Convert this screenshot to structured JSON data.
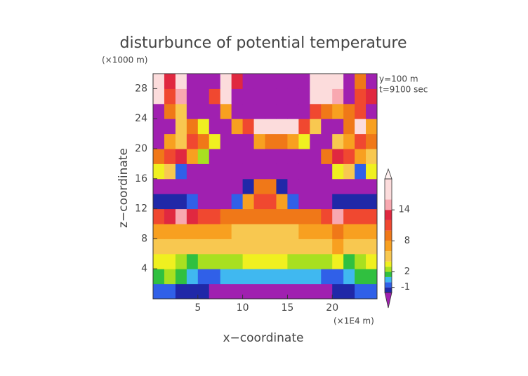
{
  "chart_data": {
    "type": "contour",
    "title": "disturbunce of potential temperature",
    "y_unit_label": "(×1000 m)",
    "x_unit_label": "(×1E4 m)",
    "annotations": [
      "y=100 m",
      "t=9100 sec"
    ],
    "xlabel": "x−coordinate",
    "ylabel": "z−coordinate",
    "xlim": [
      0,
      25
    ],
    "ylim": [
      0,
      30
    ],
    "xticks": [
      5,
      10,
      15,
      20
    ],
    "yticks": [
      4,
      8,
      12,
      16,
      20,
      24,
      28
    ],
    "z": [
      [
        -1,
        -1,
        -2,
        -2,
        -2,
        -5,
        -5,
        -5,
        -5,
        -5,
        -5,
        -5,
        -5,
        -5,
        -5,
        -5,
        -2,
        -2,
        -1,
        -1
      ],
      [
        1,
        2,
        1,
        0,
        -1,
        -1,
        0,
        0,
        0,
        0,
        0,
        0,
        0,
        0,
        0,
        -1,
        -1,
        0,
        1,
        1
      ],
      [
        3,
        3,
        2,
        1,
        2,
        2,
        2,
        2,
        3,
        3,
        3,
        3,
        2,
        2,
        2,
        2,
        3,
        1,
        2,
        3
      ],
      [
        5,
        5,
        4,
        5,
        5,
        5,
        5,
        5,
        5,
        5,
        5,
        5,
        5,
        5,
        5,
        5,
        7,
        5,
        5,
        5
      ],
      [
        7,
        7,
        7,
        7,
        7,
        7,
        7,
        5,
        5,
        5,
        5,
        5,
        5,
        7,
        7,
        7,
        9,
        7,
        7,
        7
      ],
      [
        11,
        13,
        15,
        13,
        11,
        11,
        9,
        9,
        9,
        9,
        9,
        9,
        9,
        9,
        9,
        11,
        15,
        11,
        11,
        11
      ],
      [
        -2,
        -2,
        -2,
        -1,
        -5,
        -5,
        -5,
        -1,
        7,
        11,
        11,
        7,
        -1,
        -5,
        -5,
        -5,
        -2,
        -2,
        -2,
        -2
      ],
      [
        -5,
        -5,
        -5,
        -5,
        -5,
        -5,
        -5,
        -5,
        -2,
        9,
        9,
        -2,
        -5,
        -5,
        -5,
        -5,
        -5,
        -5,
        -5,
        -5
      ],
      [
        3,
        5,
        -1,
        -5,
        -5,
        -5,
        -5,
        -5,
        -5,
        -5,
        -5,
        -5,
        -5,
        -5,
        -5,
        -5,
        3,
        5,
        -1,
        3
      ],
      [
        9,
        11,
        13,
        7,
        2,
        -5,
        -5,
        -5,
        -5,
        -5,
        -5,
        -5,
        -5,
        -5,
        -5,
        9,
        13,
        11,
        7,
        5
      ],
      [
        -5,
        7,
        5,
        11,
        9,
        3,
        -5,
        -5,
        -5,
        7,
        9,
        9,
        7,
        3,
        -5,
        -5,
        5,
        7,
        11,
        9
      ],
      [
        -5,
        -5,
        5,
        9,
        3,
        -5,
        -5,
        7,
        11,
        17,
        17,
        17,
        17,
        11,
        5,
        -5,
        -5,
        9,
        17,
        7
      ],
      [
        -5,
        9,
        5,
        -5,
        -5,
        -5,
        7,
        -5,
        -5,
        -5,
        -5,
        -5,
        -5,
        -5,
        11,
        9,
        7,
        9,
        11,
        -5
      ],
      [
        17,
        11,
        15,
        -5,
        -5,
        11,
        17,
        -5,
        -5,
        -5,
        -5,
        -5,
        -5,
        -5,
        17,
        17,
        15,
        -5,
        11,
        13
      ],
      [
        17,
        13,
        17,
        -5,
        -5,
        -5,
        17,
        13,
        -5,
        -5,
        -5,
        -5,
        -5,
        -5,
        17,
        17,
        17,
        -5,
        9,
        -5
      ]
    ],
    "colorbar": {
      "levels": [
        -2,
        -1,
        0,
        1,
        2,
        3,
        4,
        6,
        8,
        10,
        12,
        14,
        16,
        20
      ],
      "colors": [
        "#2028a8",
        "#3060e8",
        "#40b8f0",
        "#30c040",
        "#a8e020",
        "#f0f020",
        "#f8c850",
        "#f8a020",
        "#f07818",
        "#f04830",
        "#e02840",
        "#f8a8b0",
        "#fcdcdc"
      ],
      "under_color": "#a020b0",
      "over_color": "#fff0f0",
      "ticks": [
        14,
        8,
        2,
        -1
      ]
    }
  }
}
